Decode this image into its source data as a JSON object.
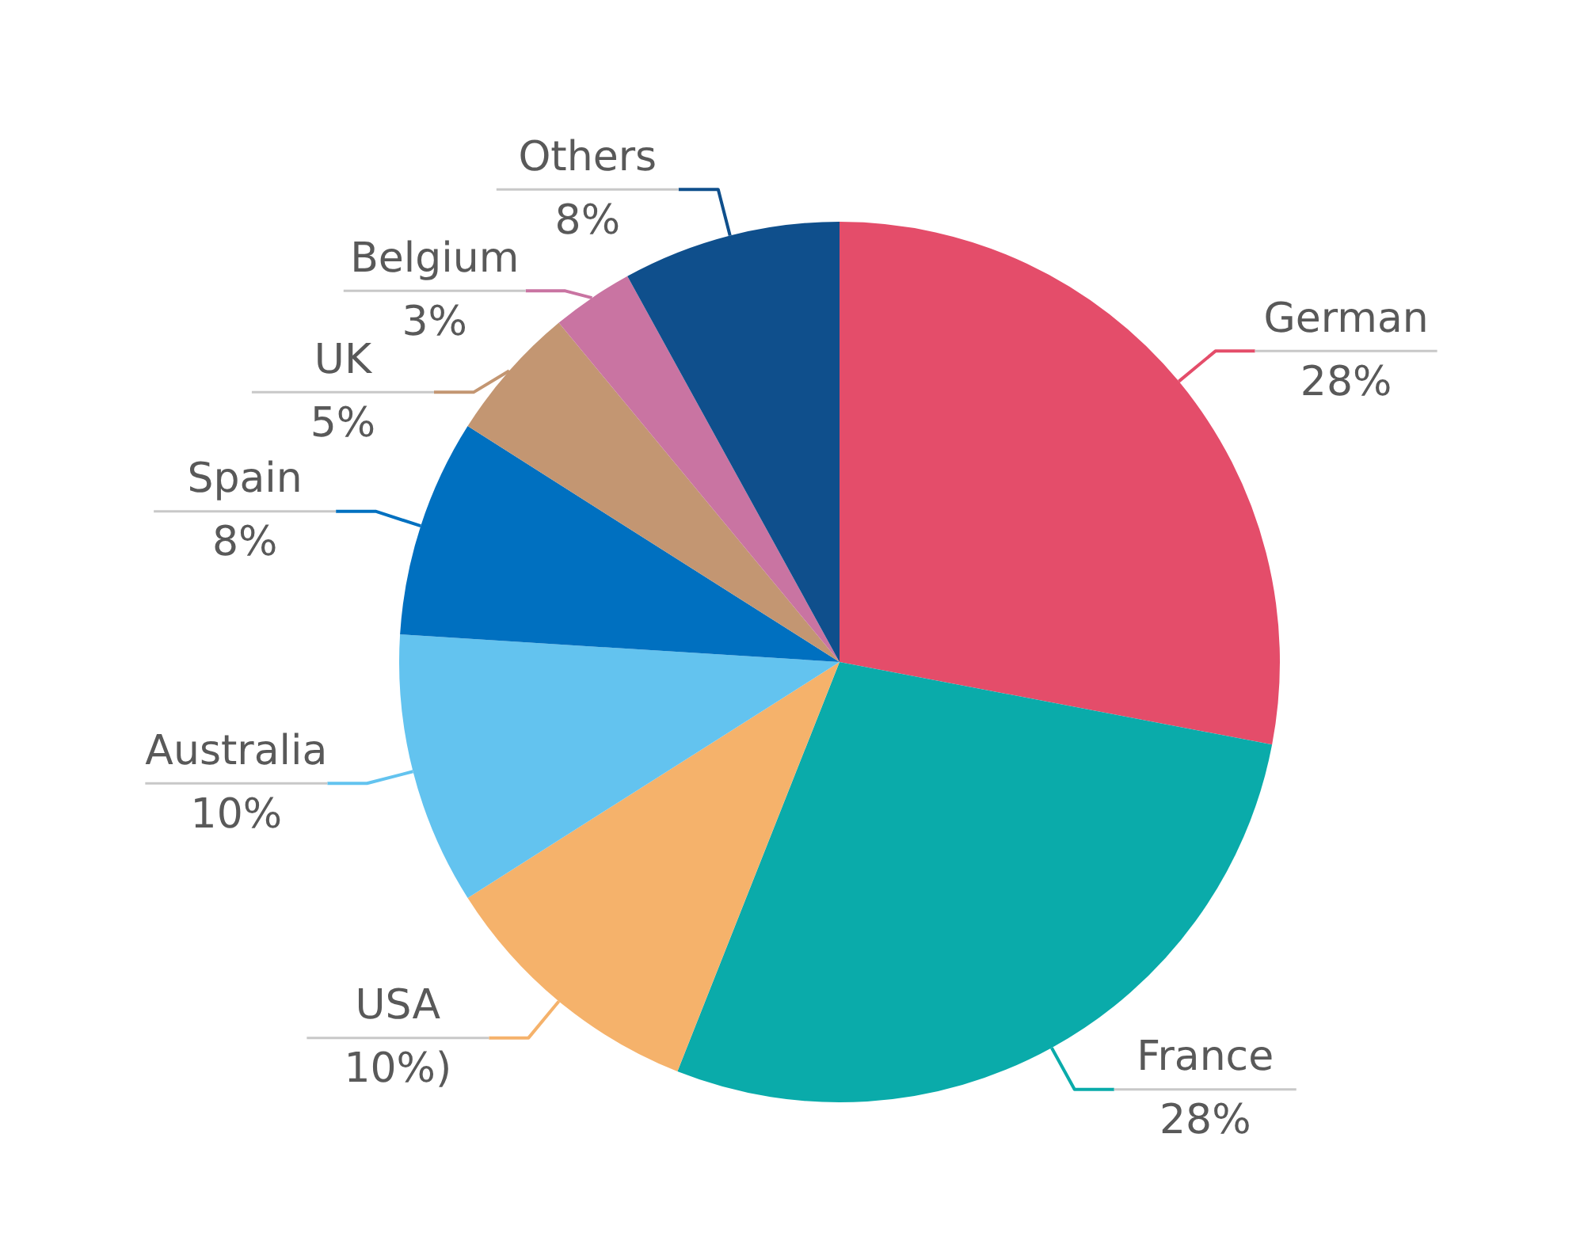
{
  "chart_data": {
    "type": "pie",
    "categories": [
      "German",
      "France",
      "USA",
      "Australia",
      "Spain",
      "UK",
      "Belgium",
      "Others"
    ],
    "values": [
      28,
      28,
      10,
      10,
      8,
      5,
      3,
      8
    ],
    "colors": [
      "#e44d6a",
      "#0aabaa",
      "#f5b26b",
      "#63c3ef",
      "#0070c0",
      "#c39672",
      "#c974a2",
      "#0f4f8c"
    ],
    "value_labels": [
      "28%",
      "28%",
      "10%)",
      "10%",
      "8%",
      "5%",
      "3%",
      "8%"
    ]
  }
}
